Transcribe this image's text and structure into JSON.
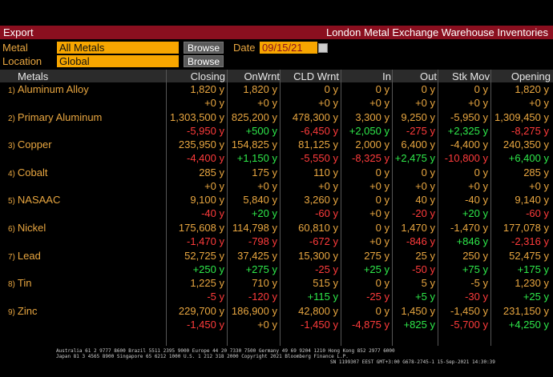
{
  "title_bar": {
    "left": "Export",
    "right": "London Metal Exchange Warehouse Inventories"
  },
  "filters": {
    "metal_label": "Metal",
    "metal_value": "All Metals",
    "location_label": "Location",
    "location_value": "Global",
    "browse_label": "Browse",
    "date_label": "Date",
    "date_value": "09/15/21"
  },
  "columns": [
    "Metals",
    "Closing",
    "OnWrnt",
    "CLD Wrnt",
    "In",
    "Out",
    "Stk Mov",
    "Opening"
  ],
  "rows": [
    {
      "idx": "1)",
      "name": "Aluminum Alloy",
      "top": [
        "1,820 y",
        "1,820 y",
        "0 y",
        "0 y",
        "0 y",
        "0 y",
        "1,820 y"
      ],
      "bot": [
        "+0 y",
        "+0 y",
        "+0 y",
        "+0 y",
        "+0 y",
        "+0 y",
        "+0 y"
      ],
      "sign": [
        "z",
        "z",
        "z",
        "z",
        "z",
        "z",
        "z"
      ]
    },
    {
      "idx": "2)",
      "name": "Primary Aluminum",
      "top": [
        "1,303,500 y",
        "825,200 y",
        "478,300 y",
        "3,300 y",
        "9,250 y",
        "-5,950 y",
        "1,309,450 y"
      ],
      "bot": [
        "-5,950 y",
        "+500 y",
        "-6,450 y",
        "+2,050 y",
        "-275 y",
        "+2,325 y",
        "-8,275 y"
      ],
      "sign": [
        "n",
        "p",
        "n",
        "p",
        "n",
        "p",
        "n"
      ]
    },
    {
      "idx": "3)",
      "name": "Copper",
      "top": [
        "235,950 y",
        "154,825 y",
        "81,125 y",
        "2,000 y",
        "6,400 y",
        "-4,400 y",
        "240,350 y"
      ],
      "bot": [
        "-4,400 y",
        "+1,150 y",
        "-5,550 y",
        "-8,325 y",
        "+2,475 y",
        "-10,800 y",
        "+6,400 y"
      ],
      "sign": [
        "n",
        "p",
        "n",
        "n",
        "p",
        "n",
        "p"
      ]
    },
    {
      "idx": "4)",
      "name": "Cobalt",
      "top": [
        "285 y",
        "175 y",
        "110 y",
        "0 y",
        "0 y",
        "0 y",
        "285 y"
      ],
      "bot": [
        "+0 y",
        "+0 y",
        "+0 y",
        "+0 y",
        "+0 y",
        "+0 y",
        "+0 y"
      ],
      "sign": [
        "z",
        "z",
        "z",
        "z",
        "z",
        "z",
        "z"
      ]
    },
    {
      "idx": "5)",
      "name": "NASAAC",
      "top": [
        "9,100 y",
        "5,840 y",
        "3,260 y",
        "0 y",
        "40 y",
        "-40 y",
        "9,140 y"
      ],
      "bot": [
        "-40 y",
        "+20 y",
        "-60 y",
        "+0 y",
        "-20 y",
        "+20 y",
        "-60 y"
      ],
      "sign": [
        "n",
        "p",
        "n",
        "z",
        "n",
        "p",
        "n"
      ]
    },
    {
      "idx": "6)",
      "name": "Nickel",
      "top": [
        "175,608 y",
        "114,798 y",
        "60,810 y",
        "0 y",
        "1,470 y",
        "-1,470 y",
        "177,078 y"
      ],
      "bot": [
        "-1,470 y",
        "-798 y",
        "-672 y",
        "+0 y",
        "-846 y",
        "+846 y",
        "-2,316 y"
      ],
      "sign": [
        "n",
        "n",
        "n",
        "z",
        "n",
        "p",
        "n"
      ]
    },
    {
      "idx": "7)",
      "name": "Lead",
      "top": [
        "52,725 y",
        "37,425 y",
        "15,300 y",
        "275 y",
        "25 y",
        "250 y",
        "52,475 y"
      ],
      "bot": [
        "+250 y",
        "+275 y",
        "-25 y",
        "+25 y",
        "-50 y",
        "+75 y",
        "+175 y"
      ],
      "sign": [
        "p",
        "p",
        "n",
        "p",
        "n",
        "p",
        "p"
      ]
    },
    {
      "idx": "8)",
      "name": "Tin",
      "top": [
        "1,225 y",
        "710 y",
        "515 y",
        "0 y",
        "5 y",
        "-5 y",
        "1,230 y"
      ],
      "bot": [
        "-5 y",
        "-120 y",
        "+115 y",
        "-25 y",
        "+5 y",
        "-30 y",
        "+25 y"
      ],
      "sign": [
        "n",
        "n",
        "p",
        "n",
        "p",
        "n",
        "p"
      ]
    },
    {
      "idx": "9)",
      "name": "Zinc",
      "top": [
        "229,700 y",
        "186,900 y",
        "42,800 y",
        "0 y",
        "1,450 y",
        "-1,450 y",
        "231,150 y"
      ],
      "bot": [
        "-1,450 y",
        "+0 y",
        "-1,450 y",
        "-4,875 y",
        "+825 y",
        "-5,700 y",
        "+4,250 y"
      ],
      "sign": [
        "n",
        "z",
        "n",
        "n",
        "p",
        "n",
        "p"
      ]
    }
  ],
  "footer": {
    "line1": "Australia 61 2 9777 8600 Brazil 5511 2395 9000 Europe 44 20 7330 7500 Germany 49 69 9204 1210 Hong Kong 852 2977 6000",
    "line2": "Japan 81 3 4565 8900       Singapore 65 6212 1000       U.S. 1 212 318 2000           Copyright 2021 Bloomberg Finance L.P.",
    "line3": "SN 1199307 EEST GMT+3:00 G678-2745-1 15-Sep-2021 14:30:39"
  }
}
